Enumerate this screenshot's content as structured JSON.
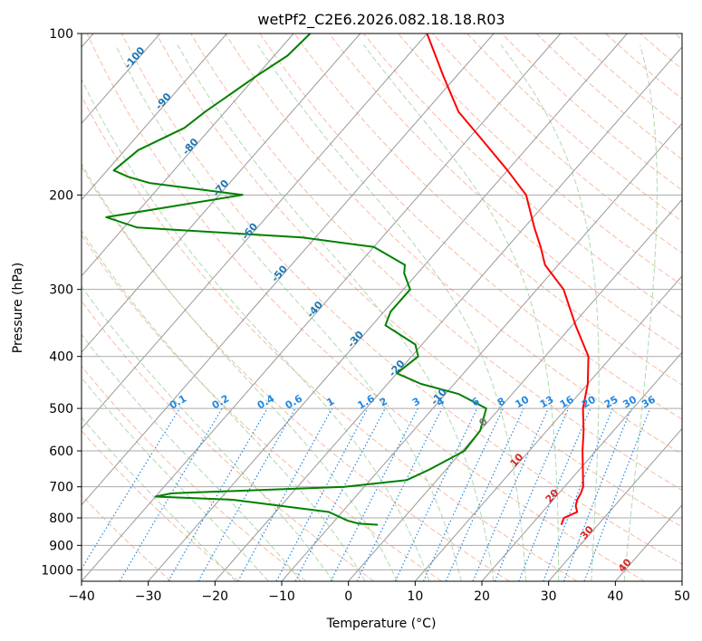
{
  "chart_data": {
    "type": "skew-t",
    "title": "wetPf2_C2E6.2026.082.18.18.R03",
    "xlabel": "Temperature (°C)",
    "ylabel": "Pressure (hPa)",
    "xlim": [
      -40,
      50
    ],
    "ylim_hpa": [
      1050,
      100
    ],
    "log_pressure_axis": true,
    "grid": true,
    "x_ticks": [
      -40,
      -30,
      -20,
      -10,
      0,
      10,
      20,
      30,
      40,
      50
    ],
    "x_tick_labels": [
      "−40",
      "−30",
      "−20",
      "−10",
      "0",
      "10",
      "20",
      "30",
      "40",
      "50"
    ],
    "y_ticks": [
      100,
      200,
      300,
      400,
      500,
      600,
      700,
      800,
      900,
      1000
    ],
    "y_tick_labels": [
      "100",
      "200",
      "300",
      "400",
      "500",
      "600",
      "700",
      "800",
      "900",
      "1000"
    ],
    "isotherm_labels": [
      {
        "value": "-100",
        "p": 112
      },
      {
        "value": "-90",
        "p": 135
      },
      {
        "value": "-80",
        "p": 164
      },
      {
        "value": "-70",
        "p": 196
      },
      {
        "value": "-60",
        "p": 236
      },
      {
        "value": "-50",
        "p": 283
      },
      {
        "value": "-40",
        "p": 330
      },
      {
        "value": "-30",
        "p": 375
      },
      {
        "value": "-20",
        "p": 425
      },
      {
        "value": "-10",
        "p": 480
      },
      {
        "value": "0",
        "p": 535
      },
      {
        "value": "10",
        "p": 630
      },
      {
        "value": "20",
        "p": 735
      },
      {
        "value": "30",
        "p": 860
      },
      {
        "value": "40",
        "p": 990
      }
    ],
    "mixing_ratio_labels": [
      "0.1",
      "0.2",
      "0.4",
      "0.6",
      "1",
      "1.6",
      "2",
      "3",
      "4",
      "6",
      "8",
      "10",
      "13",
      "16",
      "20",
      "25",
      "30",
      "36"
    ],
    "series": [
      {
        "name": "",
        "color": "#ff0000",
        "points": [
          [
            824,
            24.5
          ],
          [
            800,
            24.0
          ],
          [
            780,
            25.2
          ],
          [
            760,
            24.2
          ],
          [
            740,
            23.6
          ],
          [
            720,
            23.3
          ],
          [
            700,
            22.8
          ],
          [
            650,
            20.5
          ],
          [
            600,
            18.0
          ],
          [
            550,
            15.5
          ],
          [
            500,
            12.5
          ],
          [
            450,
            10.0
          ],
          [
            400,
            6.5
          ],
          [
            350,
            0.5
          ],
          [
            300,
            -6.0
          ],
          [
            270,
            -12.0
          ],
          [
            250,
            -15.0
          ],
          [
            230,
            -18.5
          ],
          [
            200,
            -24.0
          ],
          [
            180,
            -30.0
          ],
          [
            160,
            -37.0
          ],
          [
            140,
            -45.0
          ],
          [
            120,
            -52.0
          ],
          [
            100,
            -60.0
          ]
        ]
      },
      {
        "name": "",
        "color": "#008000",
        "points": [
          [
            824,
            -3.0
          ],
          [
            820,
            -6.0
          ],
          [
            810,
            -8.0
          ],
          [
            780,
            -12.0
          ],
          [
            760,
            -20.0
          ],
          [
            740,
            -28.0
          ],
          [
            730,
            -40.0
          ],
          [
            720,
            -38.0
          ],
          [
            700,
            -13.0
          ],
          [
            680,
            -4.5
          ],
          [
            650,
            -2.5
          ],
          [
            600,
            0.3
          ],
          [
            550,
            0.0
          ],
          [
            500,
            -2.0
          ],
          [
            470,
            -8.0
          ],
          [
            450,
            -15.0
          ],
          [
            430,
            -20.0
          ],
          [
            400,
            -19.0
          ],
          [
            380,
            -21.0
          ],
          [
            350,
            -28.0
          ],
          [
            330,
            -29.0
          ],
          [
            300,
            -29.0
          ],
          [
            280,
            -32.0
          ],
          [
            270,
            -33.0
          ],
          [
            250,
            -40.0
          ],
          [
            240,
            -52.0
          ],
          [
            230,
            -78.0
          ],
          [
            220,
            -84.0
          ],
          [
            200,
            -66.5
          ],
          [
            190,
            -82.0
          ],
          [
            185,
            -86.0
          ],
          [
            180,
            -89.0
          ],
          [
            165,
            -88.0
          ],
          [
            150,
            -84.0
          ],
          [
            140,
            -83.0
          ],
          [
            120,
            -80.0
          ],
          [
            110,
            -78.0
          ],
          [
            100,
            -77.5
          ]
        ]
      }
    ]
  }
}
